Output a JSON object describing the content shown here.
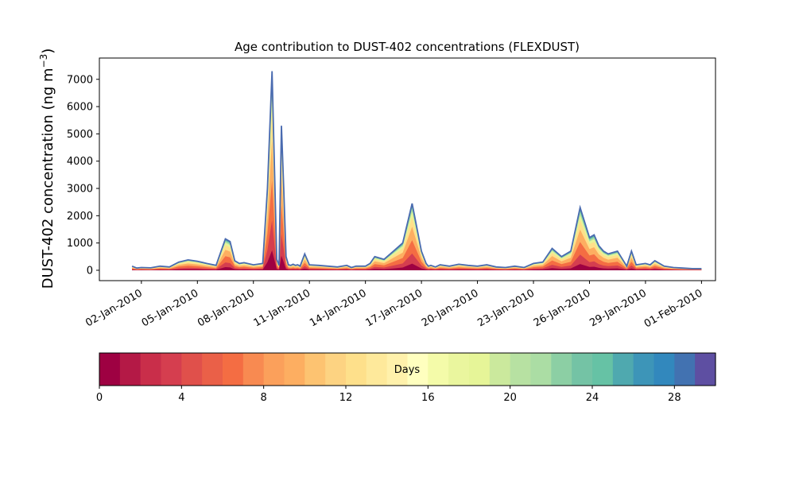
{
  "chart_data": {
    "type": "area",
    "title": "Age contribution to DUST-402 concentrations (FLEXDUST)",
    "ylabel": "DUST-402 concentration (ng m",
    "ylabel_unit_superscript": "−3",
    "ylabel_close": ")",
    "xlabel": "",
    "ylim": [
      -380,
      7780
    ],
    "yticks": [
      0,
      1000,
      2000,
      3000,
      4000,
      5000,
      6000,
      7000
    ],
    "xlim": [
      "2009-12-30T18:00",
      "2010-02-01T18:00"
    ],
    "xticks": [
      "2010-01-02",
      "2010-01-05",
      "2010-01-08",
      "2010-01-11",
      "2010-01-14",
      "2010-01-17",
      "2010-01-20",
      "2010-01-23",
      "2010-01-26",
      "2010-01-29",
      "2010-02-01"
    ],
    "xtick_labels": [
      "02-Jan-2010",
      "05-Jan-2010",
      "08-Jan-2010",
      "11-Jan-2010",
      "14-Jan-2010",
      "17-Jan-2010",
      "20-Jan-2010",
      "23-Jan-2010",
      "26-Jan-2010",
      "29-Jan-2010",
      "01-Feb-2010"
    ],
    "grid": false,
    "series_description": "Stacked contributions by particle age (1-day bins, 0–30 days); total concentration shown as the upper envelope",
    "total_concentration": {
      "x": [
        "2010-01-01T12:00",
        "2010-01-01T18:00",
        "2010-01-02T00:00",
        "2010-01-02T12:00",
        "2010-01-03T00:00",
        "2010-01-03T12:00",
        "2010-01-04T00:00",
        "2010-01-04T12:00",
        "2010-01-05T00:00",
        "2010-01-05T12:00",
        "2010-01-06T00:00",
        "2010-01-06T12:00",
        "2010-01-06T18:00",
        "2010-01-07T00:00",
        "2010-01-07T06:00",
        "2010-01-07T12:00",
        "2010-01-08T00:00",
        "2010-01-08T12:00",
        "2010-01-08T18:00",
        "2010-01-09T00:00",
        "2010-01-09T06:00",
        "2010-01-09T09:00",
        "2010-01-09T12:00",
        "2010-01-09T15:00",
        "2010-01-09T18:00",
        "2010-01-09T21:00",
        "2010-01-10T00:00",
        "2010-01-10T03:00",
        "2010-01-10T06:00",
        "2010-01-10T09:00",
        "2010-01-10T12:00",
        "2010-01-10T18:00",
        "2010-01-11T00:00",
        "2010-01-11T12:00",
        "2010-01-12T00:00",
        "2010-01-12T12:00",
        "2010-01-13T00:00",
        "2010-01-13T06:00",
        "2010-01-13T12:00",
        "2010-01-14T00:00",
        "2010-01-14T06:00",
        "2010-01-14T12:00",
        "2010-01-15T00:00",
        "2010-01-15T12:00",
        "2010-01-16T00:00",
        "2010-01-16T12:00",
        "2010-01-17T00:00",
        "2010-01-17T06:00",
        "2010-01-17T09:00",
        "2010-01-17T12:00",
        "2010-01-17T18:00",
        "2010-01-18T00:00",
        "2010-01-18T12:00",
        "2010-01-19T00:00",
        "2010-01-19T12:00",
        "2010-01-20T00:00",
        "2010-01-20T12:00",
        "2010-01-21T00:00",
        "2010-01-21T12:00",
        "2010-01-22T00:00",
        "2010-01-22T12:00",
        "2010-01-23T00:00",
        "2010-01-23T12:00",
        "2010-01-24T00:00",
        "2010-01-24T12:00",
        "2010-01-25T00:00",
        "2010-01-25T12:00",
        "2010-01-26T00:00",
        "2010-01-26T06:00",
        "2010-01-26T12:00",
        "2010-01-26T18:00",
        "2010-01-27T00:00",
        "2010-01-27T12:00",
        "2010-01-28T00:00",
        "2010-01-28T06:00",
        "2010-01-28T12:00",
        "2010-01-29T00:00",
        "2010-01-29T06:00",
        "2010-01-29T12:00",
        "2010-01-30T00:00",
        "2010-01-30T12:00",
        "2010-01-31T00:00",
        "2010-01-31T12:00",
        "2010-02-01T00:00"
      ],
      "values": [
        150,
        80,
        100,
        90,
        150,
        120,
        300,
        380,
        330,
        250,
        180,
        1150,
        1050,
        350,
        250,
        280,
        200,
        250,
        3000,
        7300,
        400,
        180,
        5300,
        3000,
        500,
        200,
        180,
        220,
        180,
        200,
        150,
        600,
        200,
        180,
        150,
        120,
        180,
        100,
        150,
        150,
        250,
        500,
        400,
        700,
        1000,
        2450,
        700,
        250,
        150,
        180,
        120,
        200,
        150,
        220,
        180,
        150,
        200,
        120,
        100,
        150,
        100,
        250,
        300,
        800,
        500,
        700,
        2300,
        1200,
        1300,
        900,
        700,
        600,
        700,
        150,
        700,
        200,
        250,
        200,
        350,
        150,
        100,
        80,
        60,
        60
      ],
      "points_comment": "approximate readings of the upper envelope"
    },
    "colorbar": {
      "label": "Days",
      "range": [
        0,
        30
      ],
      "ticks": [
        0,
        4,
        8,
        12,
        16,
        20,
        24,
        28
      ],
      "tick_labels": [
        "0",
        "4",
        "8",
        "12",
        "16",
        "20",
        "24",
        "28"
      ],
      "colormap": "Spectral",
      "bins": 30,
      "colors": [
        "#9e0142",
        "#b41946",
        "#c92e4a",
        "#d53e4f",
        "#e0504b",
        "#ea6048",
        "#f46d43",
        "#f88a51",
        "#fba05b",
        "#fdae61",
        "#fdc371",
        "#fdd382",
        "#fee08b",
        "#fee99b",
        "#fff1ab",
        "#ffffbf",
        "#f4fba9",
        "#eaf69e",
        "#e6f598",
        "#cbe99d",
        "#b7e1a2",
        "#abdda4",
        "#8ccfa4",
        "#74c3a5",
        "#66c2a5",
        "#4fa9af",
        "#3d95b8",
        "#3288bd",
        "#4272b1",
        "#5e4fa2"
      ]
    },
    "line_color": "#4a6bb0"
  }
}
